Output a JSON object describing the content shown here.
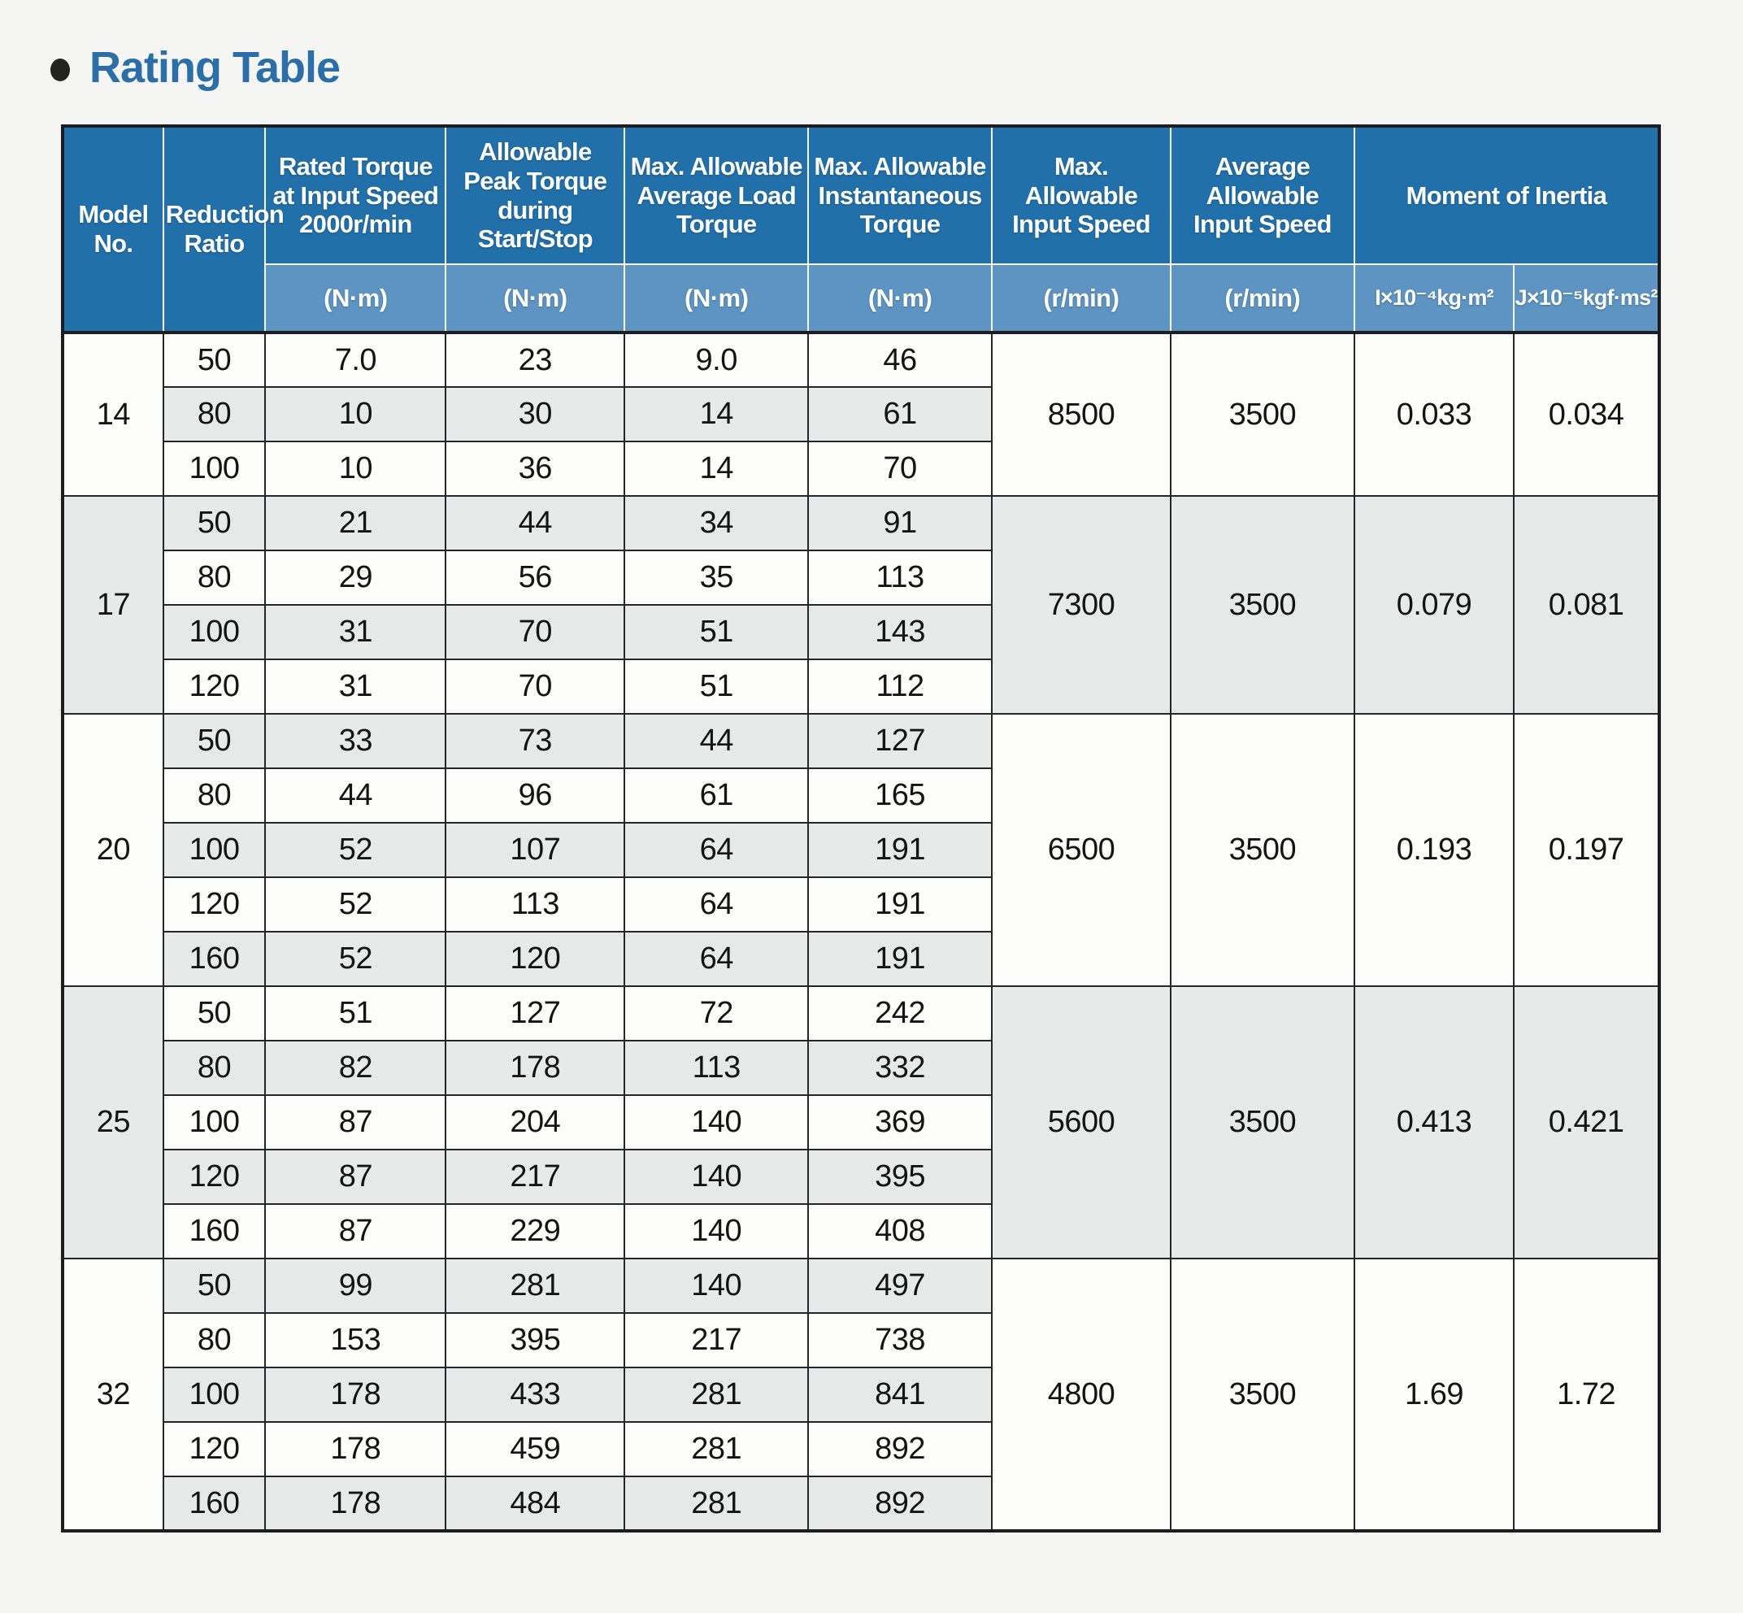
{
  "page": {
    "title": "Rating Table"
  },
  "colors": {
    "header_blue": "#2170aa",
    "units_blue": "#5d94c2",
    "title_blue": "#2c6fa8",
    "row_white": "#fcfcfa",
    "row_gray": "#e7eae9",
    "grid": "#26262a"
  },
  "table": {
    "header": {
      "model": "Model\nNo.",
      "reduction_ratio": "Reduction\nRatio",
      "rated_torque": "Rated Torque\nat Input Speed\n2000r/min",
      "peak_torque": "Allowable\nPeak Torque\nduring\nStart/Stop",
      "avg_load_torque": "Max. Allowable\nAverage Load\nTorque",
      "instantaneous_torque": "Max. Allowable\nInstantaneous\nTorque",
      "max_input_speed": "Max.\nAllowable\nInput Speed",
      "avg_input_speed": "Average\nAllowable\nInput Speed",
      "moment_of_inertia": "Moment of Inertia"
    },
    "units": [
      "(N·m)",
      "(N·m)",
      "(N·m)",
      "(N·m)",
      "(r/min)",
      "(r/min)",
      "I×10⁻⁴kg·m²",
      "J×10⁻⁵kgf·ms²"
    ],
    "groups": [
      {
        "model": "14",
        "max_input_speed": "8500",
        "avg_input_speed": "3500",
        "inertia_i": "0.033",
        "inertia_j": "0.034",
        "rows": [
          {
            "ratio": "50",
            "rated": "7.0",
            "peak": "23",
            "avg_load": "9.0",
            "instant": "46"
          },
          {
            "ratio": "80",
            "rated": "10",
            "peak": "30",
            "avg_load": "14",
            "instant": "61"
          },
          {
            "ratio": "100",
            "rated": "10",
            "peak": "36",
            "avg_load": "14",
            "instant": "70"
          }
        ]
      },
      {
        "model": "17",
        "max_input_speed": "7300",
        "avg_input_speed": "3500",
        "inertia_i": "0.079",
        "inertia_j": "0.081",
        "rows": [
          {
            "ratio": "50",
            "rated": "21",
            "peak": "44",
            "avg_load": "34",
            "instant": "91"
          },
          {
            "ratio": "80",
            "rated": "29",
            "peak": "56",
            "avg_load": "35",
            "instant": "113"
          },
          {
            "ratio": "100",
            "rated": "31",
            "peak": "70",
            "avg_load": "51",
            "instant": "143"
          },
          {
            "ratio": "120",
            "rated": "31",
            "peak": "70",
            "avg_load": "51",
            "instant": "112"
          }
        ]
      },
      {
        "model": "20",
        "max_input_speed": "6500",
        "avg_input_speed": "3500",
        "inertia_i": "0.193",
        "inertia_j": "0.197",
        "rows": [
          {
            "ratio": "50",
            "rated": "33",
            "peak": "73",
            "avg_load": "44",
            "instant": "127"
          },
          {
            "ratio": "80",
            "rated": "44",
            "peak": "96",
            "avg_load": "61",
            "instant": "165"
          },
          {
            "ratio": "100",
            "rated": "52",
            "peak": "107",
            "avg_load": "64",
            "instant": "191"
          },
          {
            "ratio": "120",
            "rated": "52",
            "peak": "113",
            "avg_load": "64",
            "instant": "191"
          },
          {
            "ratio": "160",
            "rated": "52",
            "peak": "120",
            "avg_load": "64",
            "instant": "191"
          }
        ]
      },
      {
        "model": "25",
        "max_input_speed": "5600",
        "avg_input_speed": "3500",
        "inertia_i": "0.413",
        "inertia_j": "0.421",
        "rows": [
          {
            "ratio": "50",
            "rated": "51",
            "peak": "127",
            "avg_load": "72",
            "instant": "242"
          },
          {
            "ratio": "80",
            "rated": "82",
            "peak": "178",
            "avg_load": "113",
            "instant": "332"
          },
          {
            "ratio": "100",
            "rated": "87",
            "peak": "204",
            "avg_load": "140",
            "instant": "369"
          },
          {
            "ratio": "120",
            "rated": "87",
            "peak": "217",
            "avg_load": "140",
            "instant": "395"
          },
          {
            "ratio": "160",
            "rated": "87",
            "peak": "229",
            "avg_load": "140",
            "instant": "408"
          }
        ]
      },
      {
        "model": "32",
        "max_input_speed": "4800",
        "avg_input_speed": "3500",
        "inertia_i": "1.69",
        "inertia_j": "1.72",
        "rows": [
          {
            "ratio": "50",
            "rated": "99",
            "peak": "281",
            "avg_load": "140",
            "instant": "497"
          },
          {
            "ratio": "80",
            "rated": "153",
            "peak": "395",
            "avg_load": "217",
            "instant": "738"
          },
          {
            "ratio": "100",
            "rated": "178",
            "peak": "433",
            "avg_load": "281",
            "instant": "841"
          },
          {
            "ratio": "120",
            "rated": "178",
            "peak": "459",
            "avg_load": "281",
            "instant": "892"
          },
          {
            "ratio": "160",
            "rated": "178",
            "peak": "484",
            "avg_load": "281",
            "instant": "892"
          }
        ]
      }
    ]
  }
}
